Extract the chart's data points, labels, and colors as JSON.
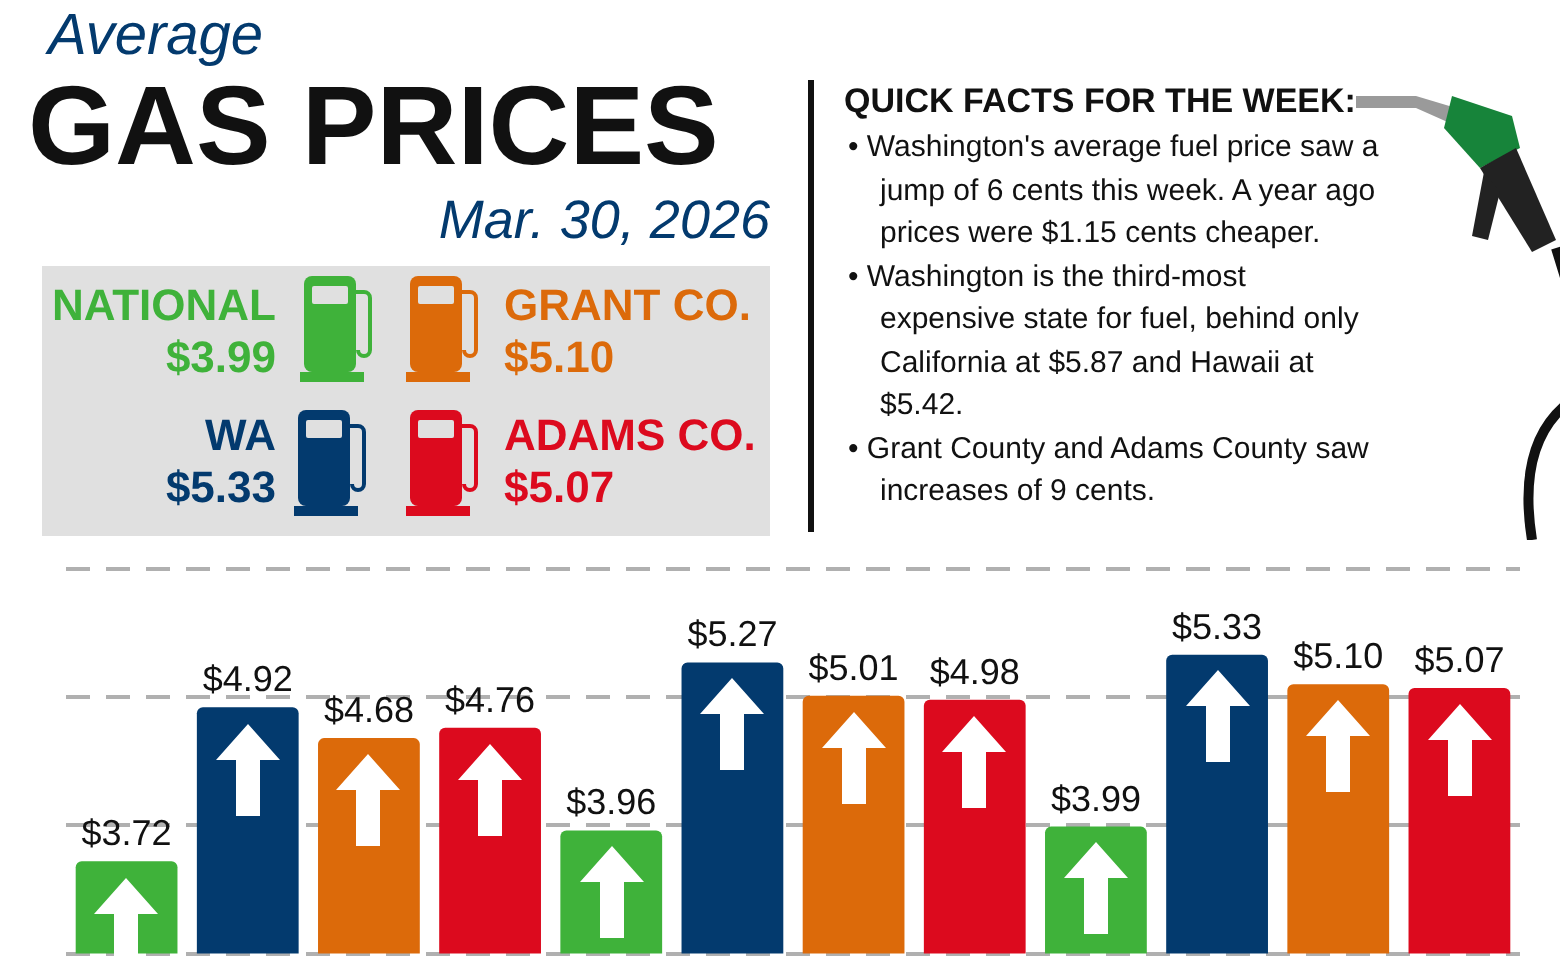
{
  "chart_data": {
    "type": "bar",
    "title": "Average GAS PRICES",
    "subtitle": "Mar. 30, 2026",
    "categories": [
      null,
      null,
      null,
      null,
      null,
      null,
      null,
      null,
      null,
      null,
      null,
      null
    ],
    "values": [
      3.72,
      4.92,
      4.68,
      4.76,
      3.96,
      5.27,
      5.01,
      4.98,
      3.99,
      5.33,
      5.1,
      5.07
    ],
    "colors": [
      "#3fb23a",
      "#033a6e",
      "#dc6a0a",
      "#dc0a1e",
      "#3fb23a",
      "#033a6e",
      "#dc6a0a",
      "#dc0a1e",
      "#3fb23a",
      "#033a6e",
      "#dc6a0a",
      "#dc0a1e"
    ],
    "value_labels": [
      "$3.72",
      "$4.92",
      "$4.68",
      "$4.76",
      "$3.96",
      "$5.27",
      "$5.01",
      "$4.98",
      "$3.99",
      "$5.33",
      "$5.10",
      "$5.07"
    ],
    "ylim": [
      3,
      6.05
    ],
    "yticks": [
      {
        "value": 3,
        "label": null
      },
      {
        "value": 4,
        "label": null
      },
      {
        "value": 5,
        "label": null
      },
      {
        "value": 6,
        "label": null
      }
    ],
    "grid": "y",
    "annotations": [
      "NATIONAL",
      "$3.99",
      "WA",
      "$5.33",
      "GRANT CO.",
      "$5.10",
      "ADAMS CO.",
      "$5.07",
      "QUICK FACTS FOR THE WEEK:",
      "• Washington's average fuel price saw a jump of 6 cents this week. A year ago prices were $1.15 cents cheaper.",
      "• Washington is the third-most expensive state for fuel, behind only California at $5.87 and Hawaii at $5.42.",
      "• Grant County and Adams County saw increases of 9 cents."
    ]
  }
}
